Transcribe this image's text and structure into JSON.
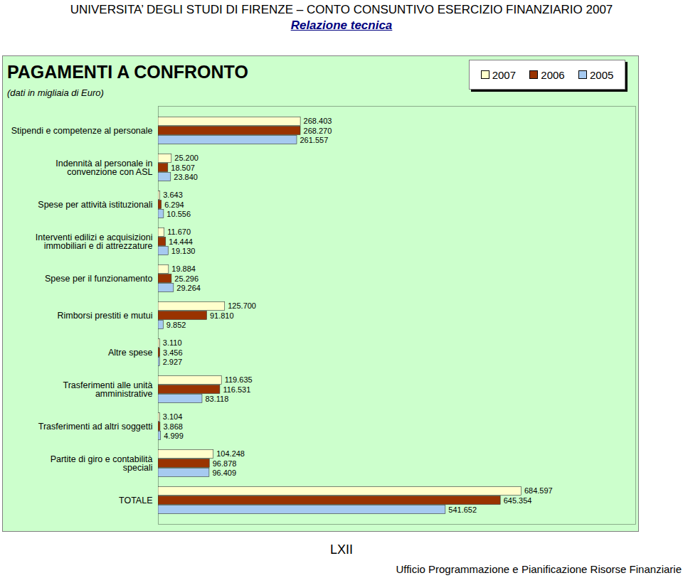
{
  "page": {
    "header": "UNIVERSITA’ DEGLI STUDI DI FIRENZE – CONTO CONSUNTIVO ESERCIZIO FINANZIARIO 2007",
    "subheader": "Relazione tecnica",
    "page_number": "LXII",
    "footer": "Ufficio Programmazione e Pianificazione Risorse Finanziarie"
  },
  "chart_data": {
    "type": "bar",
    "orientation": "horizontal",
    "title": "PAGAMENTI A CONFRONTO",
    "subtitle": "(dati in migliaia di Euro)",
    "categories": [
      "Stipendi e competenze al personale",
      "Indennità al personale in convenzione con ASL",
      "Spese per attività istituzionali",
      "Interventi edilizi e acquisizioni immobiliari e di attrezzature",
      "Spese per il funzionamento",
      "Rimborsi prestiti e mutui",
      "Altre spese",
      "Trasferimenti alle unità amministrative",
      "Trasferimenti ad altri soggetti",
      "Partite di giro e contabilità speciali",
      "TOTALE"
    ],
    "series": [
      {
        "name": "2007",
        "color": "#ffffcc",
        "values": [
          268403,
          25200,
          3643,
          11670,
          19884,
          125700,
          3110,
          119635,
          3104,
          104248,
          684597
        ],
        "value_labels": [
          "268.403",
          "25.200",
          "3.643",
          "11.670",
          "19.884",
          "125.700",
          "3.110",
          "119.635",
          "3.104",
          "104.248",
          "684.597"
        ]
      },
      {
        "name": "2006",
        "color": "#993300",
        "values": [
          268270,
          18507,
          6294,
          14444,
          25296,
          91810,
          3456,
          116531,
          3868,
          96878,
          645354
        ],
        "value_labels": [
          "268.270",
          "18.507",
          "6.294",
          "14.444",
          "25.296",
          "91.810",
          "3.456",
          "116.531",
          "3.868",
          "96.878",
          "645.354"
        ]
      },
      {
        "name": "2005",
        "color": "#a6caf0",
        "values": [
          261557,
          23840,
          10556,
          19130,
          29264,
          9852,
          2927,
          83118,
          4999,
          96409,
          541652
        ],
        "value_labels": [
          "261.557",
          "23.840",
          "10.556",
          "19.130",
          "29.264",
          "9.852",
          "2.927",
          "83.118",
          "4.999",
          "96.409",
          "541.652"
        ]
      }
    ],
    "xlim": [
      0,
      900000
    ],
    "xticks": [],
    "data_labels": true,
    "tick_labels": "y",
    "grid": false,
    "legend": "top-right"
  }
}
